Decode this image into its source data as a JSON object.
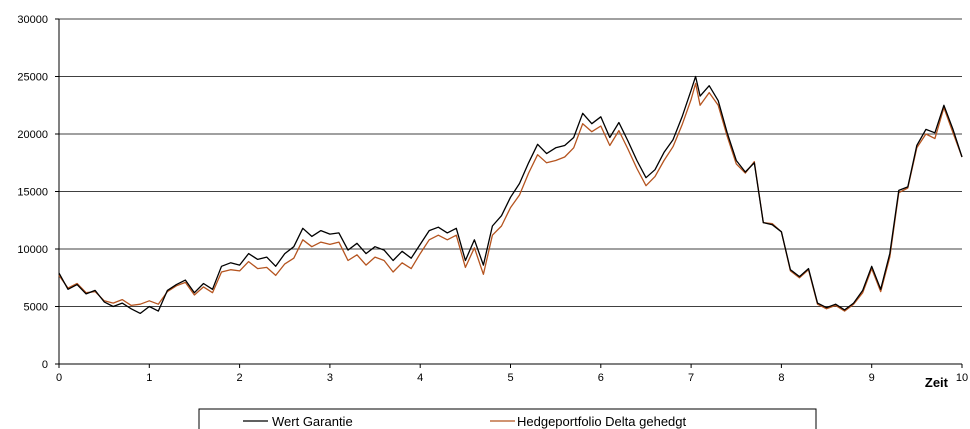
{
  "chart_data": {
    "type": "line",
    "xlabel": "Zeit",
    "ylabel": "",
    "xlim": [
      0,
      10
    ],
    "ylim": [
      0,
      30000
    ],
    "x_ticks": [
      "0",
      "1",
      "2",
      "3",
      "4",
      "5",
      "6",
      "7",
      "8",
      "9",
      "10"
    ],
    "y_ticks": [
      "0",
      "5000",
      "10000",
      "15000",
      "20000",
      "25000",
      "30000"
    ],
    "grid": "horizontal",
    "legend_placement": "bottom",
    "series": [
      {
        "name": "Wert Garantie",
        "color": "#000000",
        "x": [
          0,
          0.1,
          0.2,
          0.3,
          0.4,
          0.5,
          0.6,
          0.7,
          0.8,
          0.9,
          1.0,
          1.1,
          1.2,
          1.3,
          1.4,
          1.5,
          1.6,
          1.7,
          1.8,
          1.9,
          2.0,
          2.1,
          2.2,
          2.3,
          2.4,
          2.5,
          2.6,
          2.7,
          2.8,
          2.9,
          3.0,
          3.1,
          3.2,
          3.3,
          3.4,
          3.5,
          3.6,
          3.7,
          3.8,
          3.9,
          4.0,
          4.1,
          4.2,
          4.3,
          4.4,
          4.5,
          4.6,
          4.7,
          4.8,
          4.9,
          5.0,
          5.1,
          5.2,
          5.3,
          5.4,
          5.5,
          5.6,
          5.7,
          5.8,
          5.9,
          6.0,
          6.1,
          6.2,
          6.3,
          6.4,
          6.5,
          6.6,
          6.7,
          6.8,
          6.9,
          7.0,
          7.05,
          7.1,
          7.2,
          7.3,
          7.4,
          7.5,
          7.6,
          7.7,
          7.8,
          7.9,
          8.0,
          8.1,
          8.2,
          8.3,
          8.4,
          8.5,
          8.6,
          8.7,
          8.8,
          8.9,
          9.0,
          9.1,
          9.2,
          9.3,
          9.4,
          9.5,
          9.6,
          9.7,
          9.8,
          9.9,
          10.0
        ],
        "values": [
          7900,
          6500,
          6900,
          6100,
          6400,
          5400,
          5000,
          5300,
          4800,
          4400,
          5000,
          4600,
          6400,
          6900,
          7300,
          6200,
          7000,
          6500,
          8500,
          8800,
          8600,
          9600,
          9100,
          9300,
          8500,
          9600,
          10200,
          11800,
          11100,
          11600,
          11300,
          11400,
          9900,
          10500,
          9600,
          10200,
          9900,
          9000,
          9800,
          9200,
          10400,
          11600,
          11900,
          11400,
          11800,
          9000,
          10800,
          8600,
          12000,
          12900,
          14500,
          15700,
          17500,
          19100,
          18300,
          18800,
          19000,
          19700,
          21800,
          20900,
          21500,
          19700,
          21000,
          19400,
          17700,
          16200,
          16900,
          18400,
          19500,
          21500,
          23800,
          25000,
          23300,
          24200,
          22900,
          20100,
          17700,
          16700,
          17500,
          12300,
          12100,
          11500,
          8200,
          7600,
          8300,
          5300,
          4900,
          5200,
          4700,
          5300,
          6400,
          8500,
          6500,
          9600,
          15100,
          15400,
          19000,
          20400,
          20100,
          22500,
          20400,
          18000
        ]
      },
      {
        "name": "Hedgeportfolio Delta gehedgt",
        "color": "#b5541f",
        "x": [
          0,
          0.1,
          0.2,
          0.3,
          0.4,
          0.5,
          0.6,
          0.7,
          0.8,
          0.9,
          1.0,
          1.1,
          1.2,
          1.3,
          1.4,
          1.5,
          1.6,
          1.7,
          1.8,
          1.9,
          2.0,
          2.1,
          2.2,
          2.3,
          2.4,
          2.5,
          2.6,
          2.7,
          2.8,
          2.9,
          3.0,
          3.1,
          3.2,
          3.3,
          3.4,
          3.5,
          3.6,
          3.7,
          3.8,
          3.9,
          4.0,
          4.1,
          4.2,
          4.3,
          4.4,
          4.5,
          4.6,
          4.7,
          4.8,
          4.9,
          5.0,
          5.1,
          5.2,
          5.3,
          5.4,
          5.5,
          5.6,
          5.7,
          5.8,
          5.9,
          6.0,
          6.1,
          6.2,
          6.3,
          6.4,
          6.5,
          6.6,
          6.7,
          6.8,
          6.9,
          7.0,
          7.05,
          7.1,
          7.2,
          7.3,
          7.4,
          7.5,
          7.6,
          7.7,
          7.8,
          7.9,
          8.0,
          8.1,
          8.2,
          8.3,
          8.4,
          8.5,
          8.6,
          8.7,
          8.8,
          8.9,
          9.0,
          9.1,
          9.2,
          9.3,
          9.4,
          9.5,
          9.6,
          9.7,
          9.8,
          9.9,
          10.0
        ],
        "values": [
          7700,
          6600,
          7000,
          6200,
          6300,
          5500,
          5300,
          5600,
          5100,
          5200,
          5500,
          5200,
          6300,
          6800,
          7100,
          6000,
          6700,
          6200,
          8000,
          8200,
          8100,
          8900,
          8300,
          8400,
          7700,
          8700,
          9200,
          10800,
          10200,
          10600,
          10400,
          10600,
          9000,
          9500,
          8600,
          9300,
          9000,
          8000,
          8800,
          8300,
          9600,
          10800,
          11200,
          10800,
          11200,
          8400,
          10100,
          7800,
          11200,
          12000,
          13600,
          14700,
          16600,
          18200,
          17500,
          17700,
          18000,
          18800,
          20900,
          20200,
          20700,
          19000,
          20300,
          18700,
          17000,
          15500,
          16300,
          17700,
          18900,
          20800,
          23000,
          24400,
          22500,
          23600,
          22500,
          19800,
          17400,
          16600,
          17600,
          12300,
          12200,
          11500,
          8100,
          7500,
          8200,
          5200,
          4800,
          5100,
          4600,
          5200,
          6200,
          8300,
          6300,
          9300,
          14900,
          15300,
          18800,
          20000,
          19600,
          22300,
          20100,
          18000
        ]
      }
    ]
  }
}
